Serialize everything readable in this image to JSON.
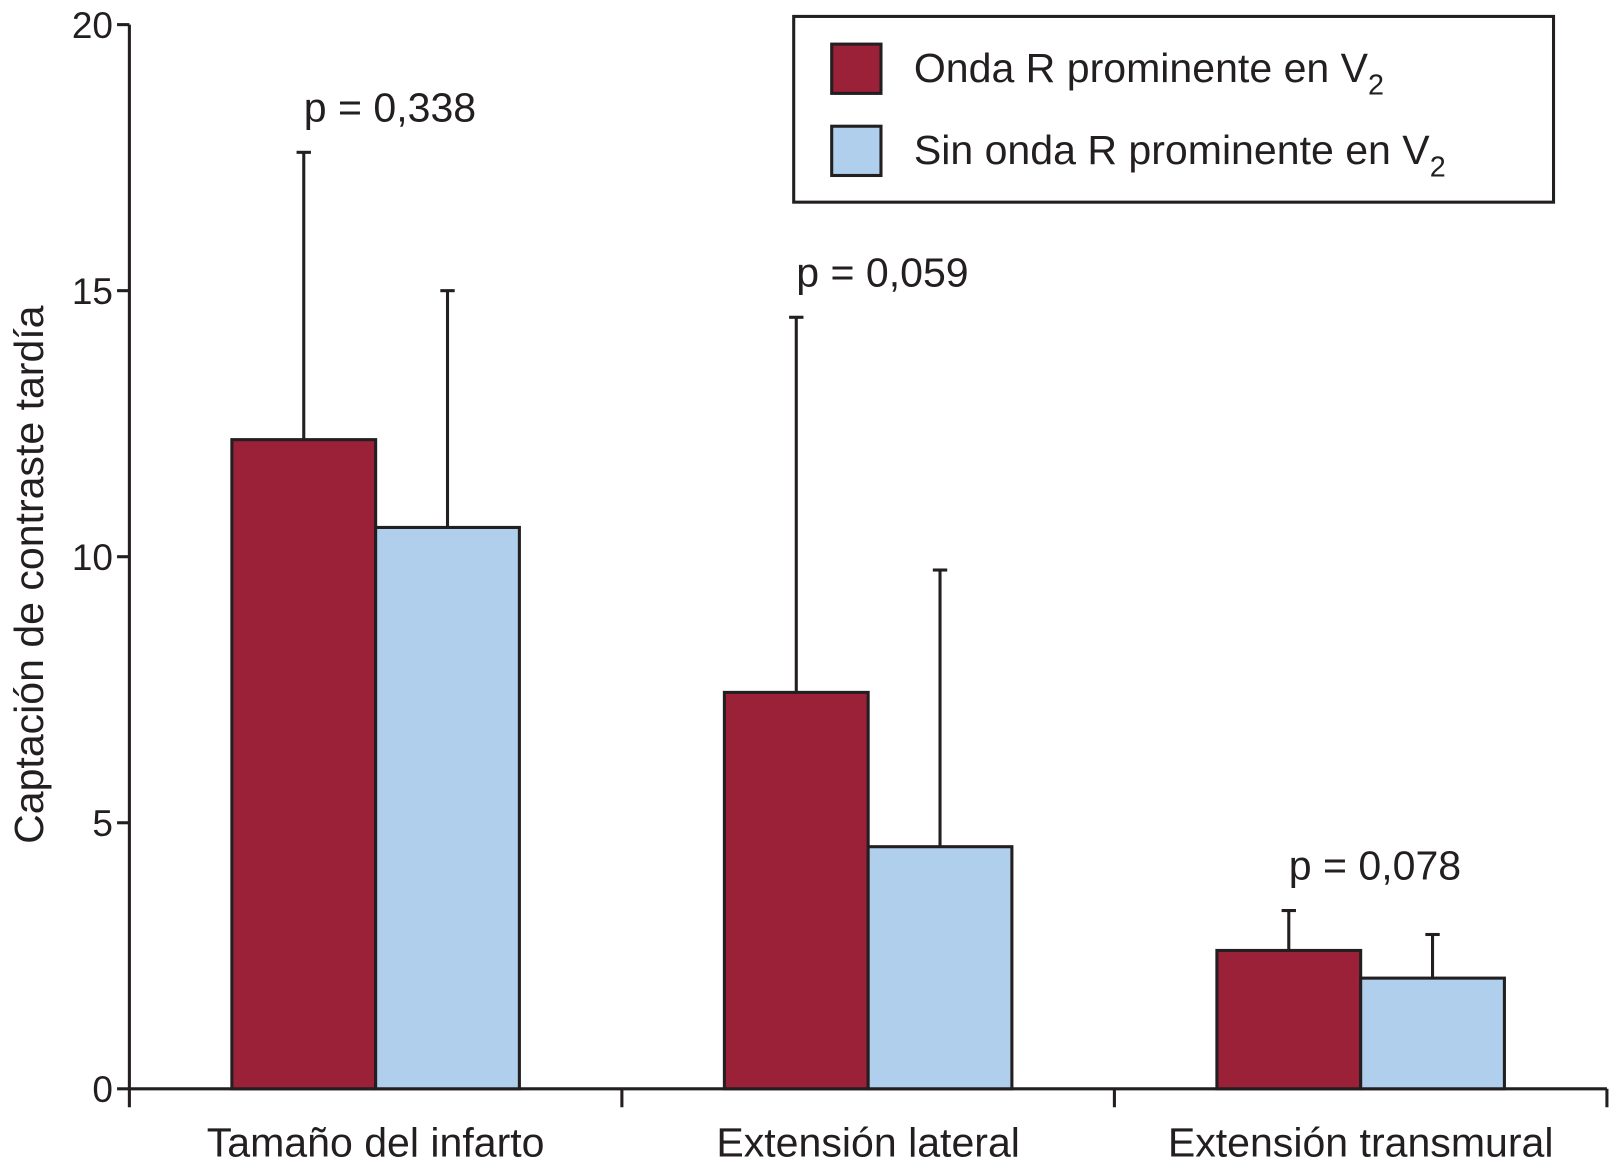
{
  "chart_data": {
    "type": "bar",
    "title": "",
    "xlabel": "",
    "ylabel": "Captación de contraste tardía",
    "ylim": [
      0,
      20
    ],
    "yticks": [
      "0",
      "5",
      "10",
      "15",
      "20"
    ],
    "grid": false,
    "legend_position": "top-right",
    "categories": [
      "Tamaño del infarto",
      "Extensión lateral",
      "Extensión transmural"
    ],
    "series": [
      {
        "name": "Onda R prominente en V",
        "name_subscript": "2",
        "color": "#9b2139",
        "values": [
          12.2,
          7.45,
          2.6
        ],
        "error_upper": [
          17.6,
          14.5,
          3.35
        ]
      },
      {
        "name": "Sin onda R prominente en V",
        "name_subscript": "2",
        "color": "#afcfed",
        "values": [
          10.55,
          4.55,
          2.08
        ],
        "error_upper": [
          15.0,
          9.75,
          2.9
        ]
      }
    ],
    "annotations": [
      "p = 0,338",
      "p = 0,059",
      "p = 0,078"
    ]
  }
}
